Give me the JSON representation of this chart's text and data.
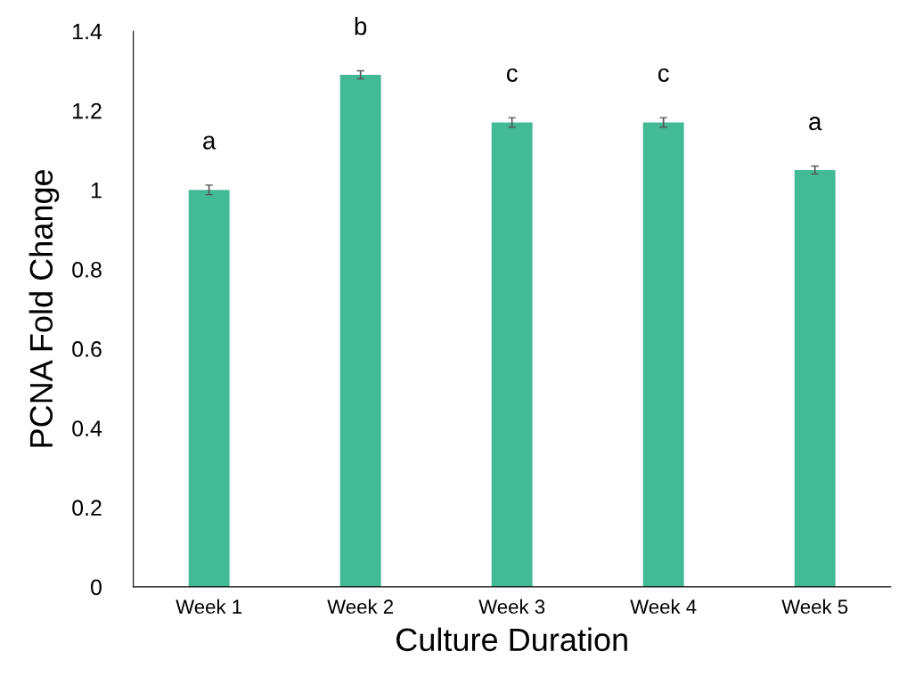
{
  "chart_data": {
    "type": "bar",
    "xlabel": "Culture Duration",
    "ylabel": "PCNA Fold Change",
    "categories": [
      "Week 1",
      "Week 2",
      "Week 3",
      "Week 4",
      "Week 5"
    ],
    "values": [
      1.0,
      1.29,
      1.17,
      1.17,
      1.05
    ],
    "errors": [
      0.012,
      0.01,
      0.012,
      0.012,
      0.01
    ],
    "color": "#42ba96",
    "ylim": [
      0,
      1.4
    ],
    "yticks": [
      0,
      0.2,
      0.4,
      0.6,
      0.8,
      1,
      1.2,
      1.4
    ],
    "annotations": [
      "a",
      "b",
      "c",
      "c",
      "a"
    ],
    "grid": false,
    "legend": false
  }
}
